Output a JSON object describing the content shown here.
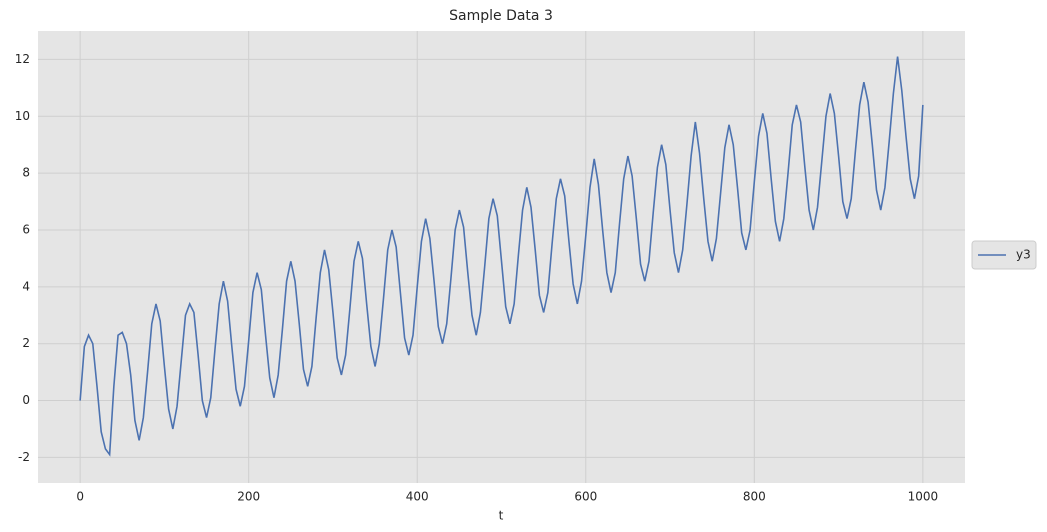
{
  "chart_data": {
    "type": "line",
    "title": "Sample Data 3",
    "xlabel": "t",
    "x": [
      0,
      5,
      10,
      15,
      20,
      25,
      30,
      35,
      40,
      45,
      50,
      55,
      60,
      65,
      70,
      75,
      80,
      85,
      90,
      95,
      100,
      105,
      110,
      115,
      120,
      125,
      130,
      135,
      140,
      145,
      150,
      155,
      160,
      165,
      170,
      175,
      180,
      185,
      190,
      195,
      200,
      205,
      210,
      215,
      220,
      225,
      230,
      235,
      240,
      245,
      250,
      255,
      260,
      265,
      270,
      275,
      280,
      285,
      290,
      295,
      300,
      305,
      310,
      315,
      320,
      325,
      330,
      335,
      340,
      345,
      350,
      355,
      360,
      365,
      370,
      375,
      380,
      385,
      390,
      395,
      400,
      405,
      410,
      415,
      420,
      425,
      430,
      435,
      440,
      445,
      450,
      455,
      460,
      465,
      470,
      475,
      480,
      485,
      490,
      495,
      500,
      505,
      510,
      515,
      520,
      525,
      530,
      535,
      540,
      545,
      550,
      555,
      560,
      565,
      570,
      575,
      580,
      585,
      590,
      595,
      600,
      605,
      610,
      615,
      620,
      625,
      630,
      635,
      640,
      645,
      650,
      655,
      660,
      665,
      670,
      675,
      680,
      685,
      690,
      695,
      700,
      705,
      710,
      715,
      720,
      725,
      730,
      735,
      740,
      745,
      750,
      755,
      760,
      765,
      770,
      775,
      780,
      785,
      790,
      795,
      800,
      805,
      810,
      815,
      820,
      825,
      830,
      835,
      840,
      845,
      850,
      855,
      860,
      865,
      870,
      875,
      880,
      885,
      890,
      895,
      900,
      905,
      910,
      915,
      920,
      925,
      930,
      935,
      940,
      945,
      950,
      955,
      960,
      965,
      970,
      975,
      980,
      985,
      990,
      995,
      1000
    ],
    "series": [
      {
        "name": "y3",
        "color": "#4c72b0",
        "values": [
          0.0,
          1.9,
          2.3,
          2.0,
          0.5,
          -1.1,
          -1.7,
          -1.9,
          0.5,
          2.3,
          2.4,
          2.0,
          0.9,
          -0.7,
          -1.4,
          -0.6,
          1.0,
          2.7,
          3.4,
          2.8,
          1.2,
          -0.3,
          -1.0,
          -0.2,
          1.4,
          3.0,
          3.4,
          3.1,
          1.6,
          0.0,
          -0.6,
          0.1,
          1.8,
          3.4,
          4.2,
          3.5,
          1.9,
          0.4,
          -0.2,
          0.5,
          2.1,
          3.8,
          4.5,
          3.9,
          2.3,
          0.8,
          0.1,
          0.9,
          2.5,
          4.2,
          4.9,
          4.2,
          2.7,
          1.1,
          0.5,
          1.2,
          2.9,
          4.5,
          5.3,
          4.6,
          3.1,
          1.5,
          0.9,
          1.6,
          3.2,
          4.9,
          5.6,
          5.0,
          3.4,
          1.9,
          1.2,
          2.0,
          3.6,
          5.3,
          6.0,
          5.4,
          3.8,
          2.2,
          1.6,
          2.3,
          4.0,
          5.6,
          6.4,
          5.7,
          4.2,
          2.6,
          2.0,
          2.7,
          4.3,
          6.0,
          6.7,
          6.1,
          4.5,
          3.0,
          2.3,
          3.1,
          4.7,
          6.4,
          7.1,
          6.5,
          4.9,
          3.3,
          2.7,
          3.4,
          5.1,
          6.7,
          7.5,
          6.8,
          5.3,
          3.7,
          3.1,
          3.8,
          5.5,
          7.1,
          7.8,
          7.2,
          5.6,
          4.1,
          3.4,
          4.2,
          5.8,
          7.5,
          8.5,
          7.6,
          6.0,
          4.5,
          3.8,
          4.5,
          6.2,
          7.8,
          8.6,
          7.9,
          6.4,
          4.8,
          4.2,
          4.9,
          6.6,
          8.2,
          9.0,
          8.3,
          6.7,
          5.2,
          4.5,
          5.3,
          6.9,
          8.6,
          9.8,
          8.7,
          7.1,
          5.6,
          4.9,
          5.7,
          7.3,
          8.9,
          9.7,
          9.0,
          7.5,
          5.9,
          5.3,
          6.0,
          7.7,
          9.3,
          10.1,
          9.4,
          7.8,
          6.3,
          5.6,
          6.4,
          8.0,
          9.7,
          10.4,
          9.8,
          8.2,
          6.7,
          6.0,
          6.8,
          8.4,
          10.0,
          10.8,
          10.1,
          8.6,
          7.0,
          6.4,
          7.1,
          8.8,
          10.4,
          11.2,
          10.5,
          9.0,
          7.4,
          6.7,
          7.5,
          9.1,
          10.8,
          12.1,
          10.9,
          9.3,
          7.8,
          7.1,
          7.9,
          10.4
        ]
      }
    ],
    "xlim": [
      -50,
      1050
    ],
    "ylim": [
      -2.9,
      13.0
    ],
    "xticks": [
      0,
      200,
      400,
      600,
      800,
      1000
    ],
    "yticks": [
      -2,
      0,
      2,
      4,
      6,
      8,
      10,
      12
    ],
    "grid": true,
    "legend": "right"
  }
}
